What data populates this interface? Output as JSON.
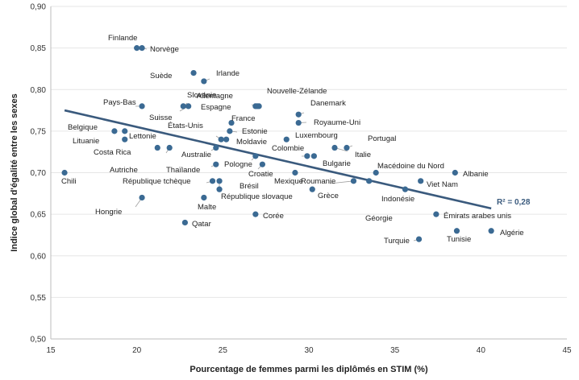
{
  "chart_data": {
    "type": "scatter",
    "title": "",
    "xlabel": "Pourcentage de femmes parmi les diplômés en STIM (%)",
    "ylabel": "Indice global d'égalité entre les sexes",
    "xlim": [
      15,
      45
    ],
    "ylim": [
      0.5,
      0.9
    ],
    "x_ticks": [
      "15",
      "20",
      "25",
      "30",
      "35",
      "40",
      "45"
    ],
    "y_ticks": [
      "0,50",
      "0,55",
      "0,60",
      "0,65",
      "0,70",
      "0,75",
      "0,80",
      "0,85",
      "0,90"
    ],
    "grid": "horizontal",
    "point_color": "#3b6a93",
    "trend_color": "#3a5a7d",
    "trendline": {
      "x": [
        15.8,
        40.6
      ],
      "y": [
        0.775,
        0.657
      ],
      "label": "R² = 0,28"
    },
    "points": [
      {
        "name": "Finlande",
        "x": 20.0,
        "y": 0.85
      },
      {
        "name": "Norvège",
        "x": 20.3,
        "y": 0.85
      },
      {
        "name": "Suède",
        "x": 23.3,
        "y": 0.82
      },
      {
        "name": "Irlande",
        "x": 23.9,
        "y": 0.81
      },
      {
        "name": "Slovénie",
        "x": 22.7,
        "y": 0.78
      },
      {
        "name": "Pays-Bas",
        "x": 20.3,
        "y": 0.78
      },
      {
        "name": "Suisse",
        "x": 23.0,
        "y": 0.78
      },
      {
        "name": "Allemagne",
        "x": 27.0,
        "y": 0.78
      },
      {
        "name": "Espagne",
        "x": 26.9,
        "y": 0.78
      },
      {
        "name": "Nouvelle-Zélande",
        "x": 27.1,
        "y": 0.78
      },
      {
        "name": "Danemark",
        "x": 29.4,
        "y": 0.77
      },
      {
        "name": "Royaume-Uni",
        "x": 29.4,
        "y": 0.76
      },
      {
        "name": "France",
        "x": 25.5,
        "y": 0.76
      },
      {
        "name": "Estonie",
        "x": 25.4,
        "y": 0.75
      },
      {
        "name": "États-Unis",
        "x": 24.9,
        "y": 0.74
      },
      {
        "name": "Moldavie",
        "x": 25.2,
        "y": 0.74
      },
      {
        "name": "Belgique",
        "x": 18.7,
        "y": 0.75
      },
      {
        "name": "Lettonie",
        "x": 19.3,
        "y": 0.75
      },
      {
        "name": "Lituanie",
        "x": 19.3,
        "y": 0.74
      },
      {
        "name": "Luxembourg",
        "x": 28.7,
        "y": 0.74
      },
      {
        "name": "Costa Rica",
        "x": 21.2,
        "y": 0.73
      },
      {
        "name": "Australie",
        "x": 24.6,
        "y": 0.73
      },
      {
        "name": "Colombie",
        "x": 29.9,
        "y": 0.72
      },
      {
        "name": "Bulgarie",
        "x": 30.3,
        "y": 0.72
      },
      {
        "name": "Portugal",
        "x": 32.2,
        "y": 0.73
      },
      {
        "name": "Italie",
        "x": 31.5,
        "y": 0.73
      },
      {
        "name": "Autriche",
        "x": 21.9,
        "y": 0.73
      },
      {
        "name": "Pologne",
        "x": 26.9,
        "y": 0.72
      },
      {
        "name": "Thaïlande",
        "x": 24.6,
        "y": 0.71
      },
      {
        "name": "Croatie",
        "x": 27.3,
        "y": 0.71
      },
      {
        "name": "Chili",
        "x": 15.8,
        "y": 0.7
      },
      {
        "name": "Mexique",
        "x": 29.2,
        "y": 0.7
      },
      {
        "name": "Macédoine du Nord",
        "x": 33.9,
        "y": 0.7
      },
      {
        "name": "Albanie",
        "x": 38.5,
        "y": 0.7
      },
      {
        "name": "République tchèque",
        "x": 24.4,
        "y": 0.69
      },
      {
        "name": "Brésil",
        "x": 24.8,
        "y": 0.69
      },
      {
        "name": "Roumanie",
        "x": 32.6,
        "y": 0.69
      },
      {
        "name": "Viet Nam",
        "x": 36.5,
        "y": 0.69
      },
      {
        "name": "Géorgie",
        "x": 33.5,
        "y": 0.69
      },
      {
        "name": "République slovaque",
        "x": 24.8,
        "y": 0.68
      },
      {
        "name": "Grèce",
        "x": 30.2,
        "y": 0.68
      },
      {
        "name": "Indonésie",
        "x": 35.6,
        "y": 0.68
      },
      {
        "name": "Hongrie",
        "x": 20.3,
        "y": 0.67
      },
      {
        "name": "Malte",
        "x": 23.9,
        "y": 0.67
      },
      {
        "name": "Corée",
        "x": 26.9,
        "y": 0.65
      },
      {
        "name": "Émirats arabes unis",
        "x": 37.4,
        "y": 0.65
      },
      {
        "name": "Qatar",
        "x": 22.8,
        "y": 0.64
      },
      {
        "name": "Tunisie",
        "x": 38.6,
        "y": 0.63
      },
      {
        "name": "Algérie",
        "x": 40.6,
        "y": 0.63
      },
      {
        "name": "Turquie",
        "x": 36.4,
        "y": 0.62
      }
    ]
  }
}
